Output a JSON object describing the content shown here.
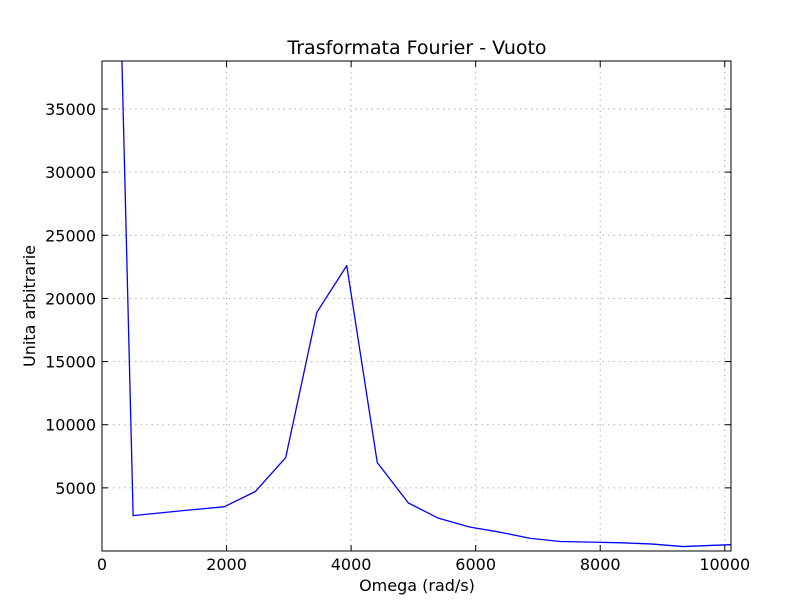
{
  "chart_data": {
    "type": "line",
    "title": "Trasformata Fourier - Vuoto",
    "xlabel": "Omega (rad/s)",
    "ylabel": "Unita arbitrarie",
    "xlim": [
      0,
      10100
    ],
    "ylim": [
      0,
      38800
    ],
    "xticks": [
      0,
      2000,
      4000,
      6000,
      8000,
      10000
    ],
    "yticks": [
      5000,
      10000,
      15000,
      20000,
      25000,
      30000,
      35000
    ],
    "grid": true,
    "line_color": "#0000ff",
    "series": [
      {
        "x": [
          320,
          500,
          1300,
          1960,
          2460,
          2950,
          3450,
          3930,
          4420,
          4920,
          5400,
          5900,
          6380,
          6880,
          7360,
          7860,
          8350,
          8840,
          9330,
          9820,
          10100
        ],
        "y": [
          38800,
          2800,
          3200,
          3500,
          4700,
          7400,
          18900,
          22600,
          7000,
          3800,
          2600,
          1900,
          1500,
          1000,
          750,
          700,
          650,
          550,
          350,
          450,
          500
        ]
      }
    ]
  }
}
